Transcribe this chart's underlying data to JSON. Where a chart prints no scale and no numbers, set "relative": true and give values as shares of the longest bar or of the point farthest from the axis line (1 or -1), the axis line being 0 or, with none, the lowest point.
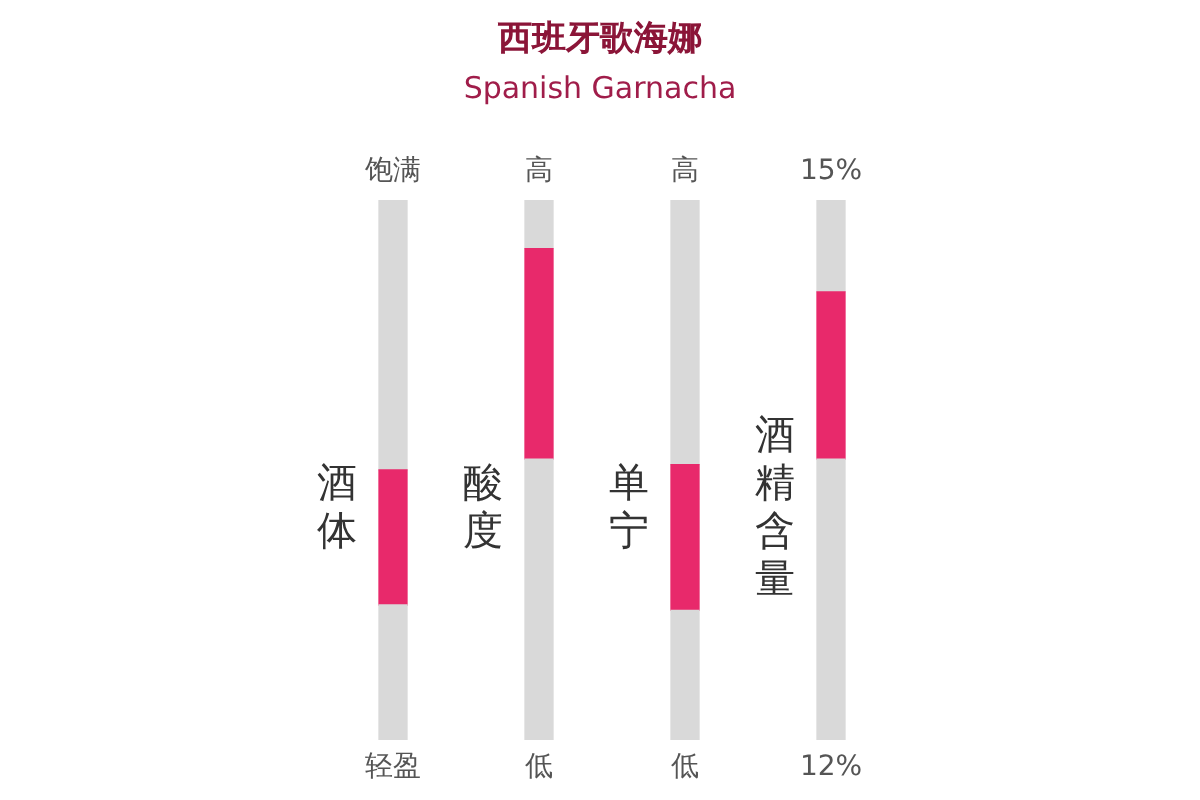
{
  "chart_data": {
    "type": "bar",
    "title": "西班牙歌海娜",
    "subtitle": "Spanish Garnacha",
    "relative": true,
    "stacked": true,
    "categories": [
      "酒体",
      "酸度",
      "单宁",
      "酒精含量"
    ],
    "series": [
      {
        "color": "#d9d9d9",
        "values": [
          0.25,
          0.52,
          0.24,
          0.52
        ]
      },
      {
        "color": "#e8296b",
        "values": [
          0.25,
          0.39,
          0.27,
          0.31
        ]
      },
      {
        "color": "#d9d9d9",
        "values": [
          0.5,
          0.09,
          0.49,
          0.17
        ]
      }
    ],
    "annotations": [
      "饱满",
      "轻盈",
      "高",
      "低",
      "高",
      "低",
      "15%",
      "12%"
    ],
    "legend": false
  }
}
